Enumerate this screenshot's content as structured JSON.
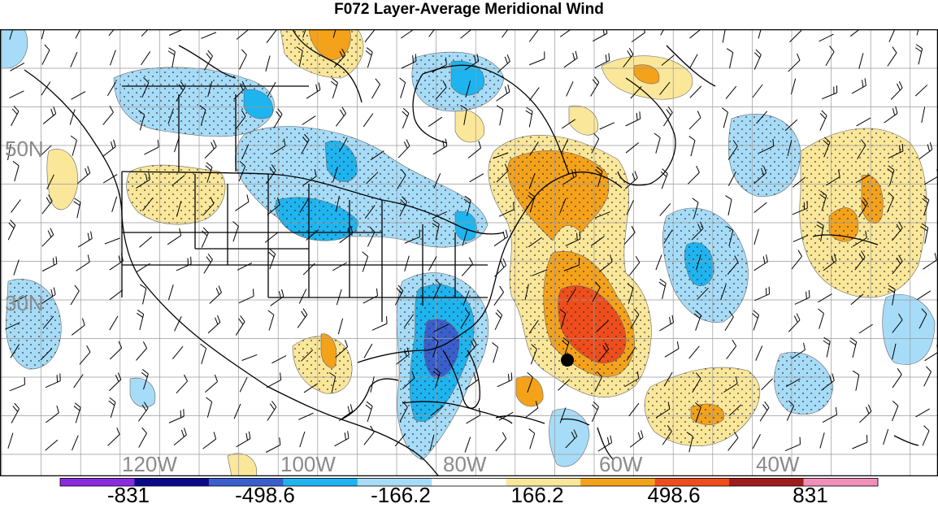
{
  "title": "F072 Layer-Average Meridional Wind",
  "lat_labels": [
    "50N",
    "30N"
  ],
  "lon_labels": [
    "120W",
    "100W",
    "80W",
    "60W",
    "40W"
  ],
  "colorbar": {
    "colors": [
      "#8a2be2",
      "#0a0a8a",
      "#3a5fcd",
      "#1eb4f0",
      "#a7dcf8",
      "#ffffff",
      "#fbe79a",
      "#f5a21b",
      "#ef4d1c",
      "#a11d1d",
      "#f08fb7"
    ],
    "labels": [
      "-831",
      "-498.6",
      "-166.2",
      "166.2",
      "498.6",
      "831"
    ]
  },
  "fill_colors": {
    "neg_light": "#a7dcf8",
    "neg_mid": "#1eb4f0",
    "neg_deep": "#3a5fcd",
    "pos_light": "#fbe79a",
    "pos_mid": "#f5a21b",
    "pos_deep": "#ef4d1c"
  },
  "marker": "storm-center"
}
